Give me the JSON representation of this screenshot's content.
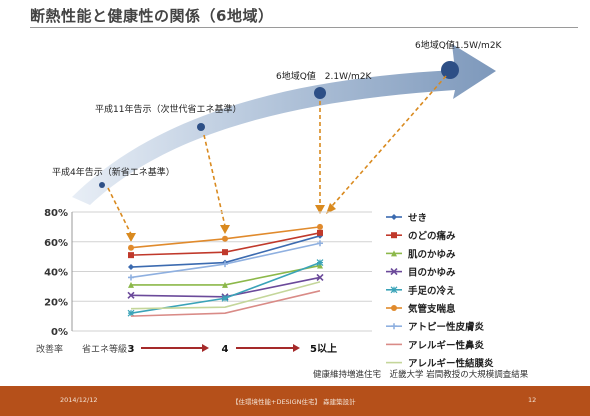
{
  "slide": {
    "title": "断熱性能と健康性の関係（6地域）",
    "source_note": "健康維持増進住宅　近畿大学 岩間教授の大規模調査結果",
    "footer": {
      "date": "2014/12/12",
      "center": "【住環境性能+DESIGN住宅】 森建築設計",
      "page": "12"
    }
  },
  "arrow_annotations": [
    {
      "label": "平成4年告示（新省エネ基準）",
      "points_to": "3"
    },
    {
      "label": "平成11年告示（次世代省エネ基準）",
      "points_to": "4"
    },
    {
      "label": "6地域Q値　2.1W/m2K",
      "points_to": "5以上"
    },
    {
      "label": "6地域Q値1.5W/m2K",
      "points_to": ""
    }
  ],
  "chart_data": {
    "type": "line",
    "title": "",
    "xlabel": "省エネ等級",
    "ylabel": "改善率",
    "categories": [
      "3",
      "4",
      "5以上"
    ],
    "ylim": [
      0,
      80
    ],
    "yticks": [
      "0%",
      "20%",
      "40%",
      "60%",
      "80%"
    ],
    "grid": true,
    "legend_position": "right",
    "series": [
      {
        "name": "せき",
        "color": "#3c6bb0",
        "marker": "diamond",
        "values": [
          43,
          46,
          64
        ]
      },
      {
        "name": "のどの痛み",
        "color": "#c0392b",
        "marker": "square",
        "values": [
          51,
          53,
          66
        ]
      },
      {
        "name": "肌のかゆみ",
        "color": "#8cb84a",
        "marker": "triangle",
        "values": [
          31,
          31,
          44
        ]
      },
      {
        "name": "目のかゆみ",
        "color": "#6b4a9a",
        "marker": "x",
        "values": [
          24,
          23,
          36
        ]
      },
      {
        "name": "手足の冷え",
        "color": "#3aa3b8",
        "marker": "star",
        "values": [
          12,
          22,
          46
        ]
      },
      {
        "name": "気管支喘息",
        "color": "#e08a2c",
        "marker": "circle",
        "values": [
          56,
          62,
          70
        ]
      },
      {
        "name": "アトピー性皮膚炎",
        "color": "#8fb0e0",
        "marker": "plus",
        "values": [
          36,
          45,
          59
        ]
      },
      {
        "name": "アレルギー性鼻炎",
        "color": "#d98b87",
        "marker": "none",
        "values": [
          10,
          12,
          27
        ]
      },
      {
        "name": "アレルギー性結膜炎",
        "color": "#c4d69a",
        "marker": "none",
        "values": [
          15,
          16,
          33
        ]
      }
    ]
  }
}
